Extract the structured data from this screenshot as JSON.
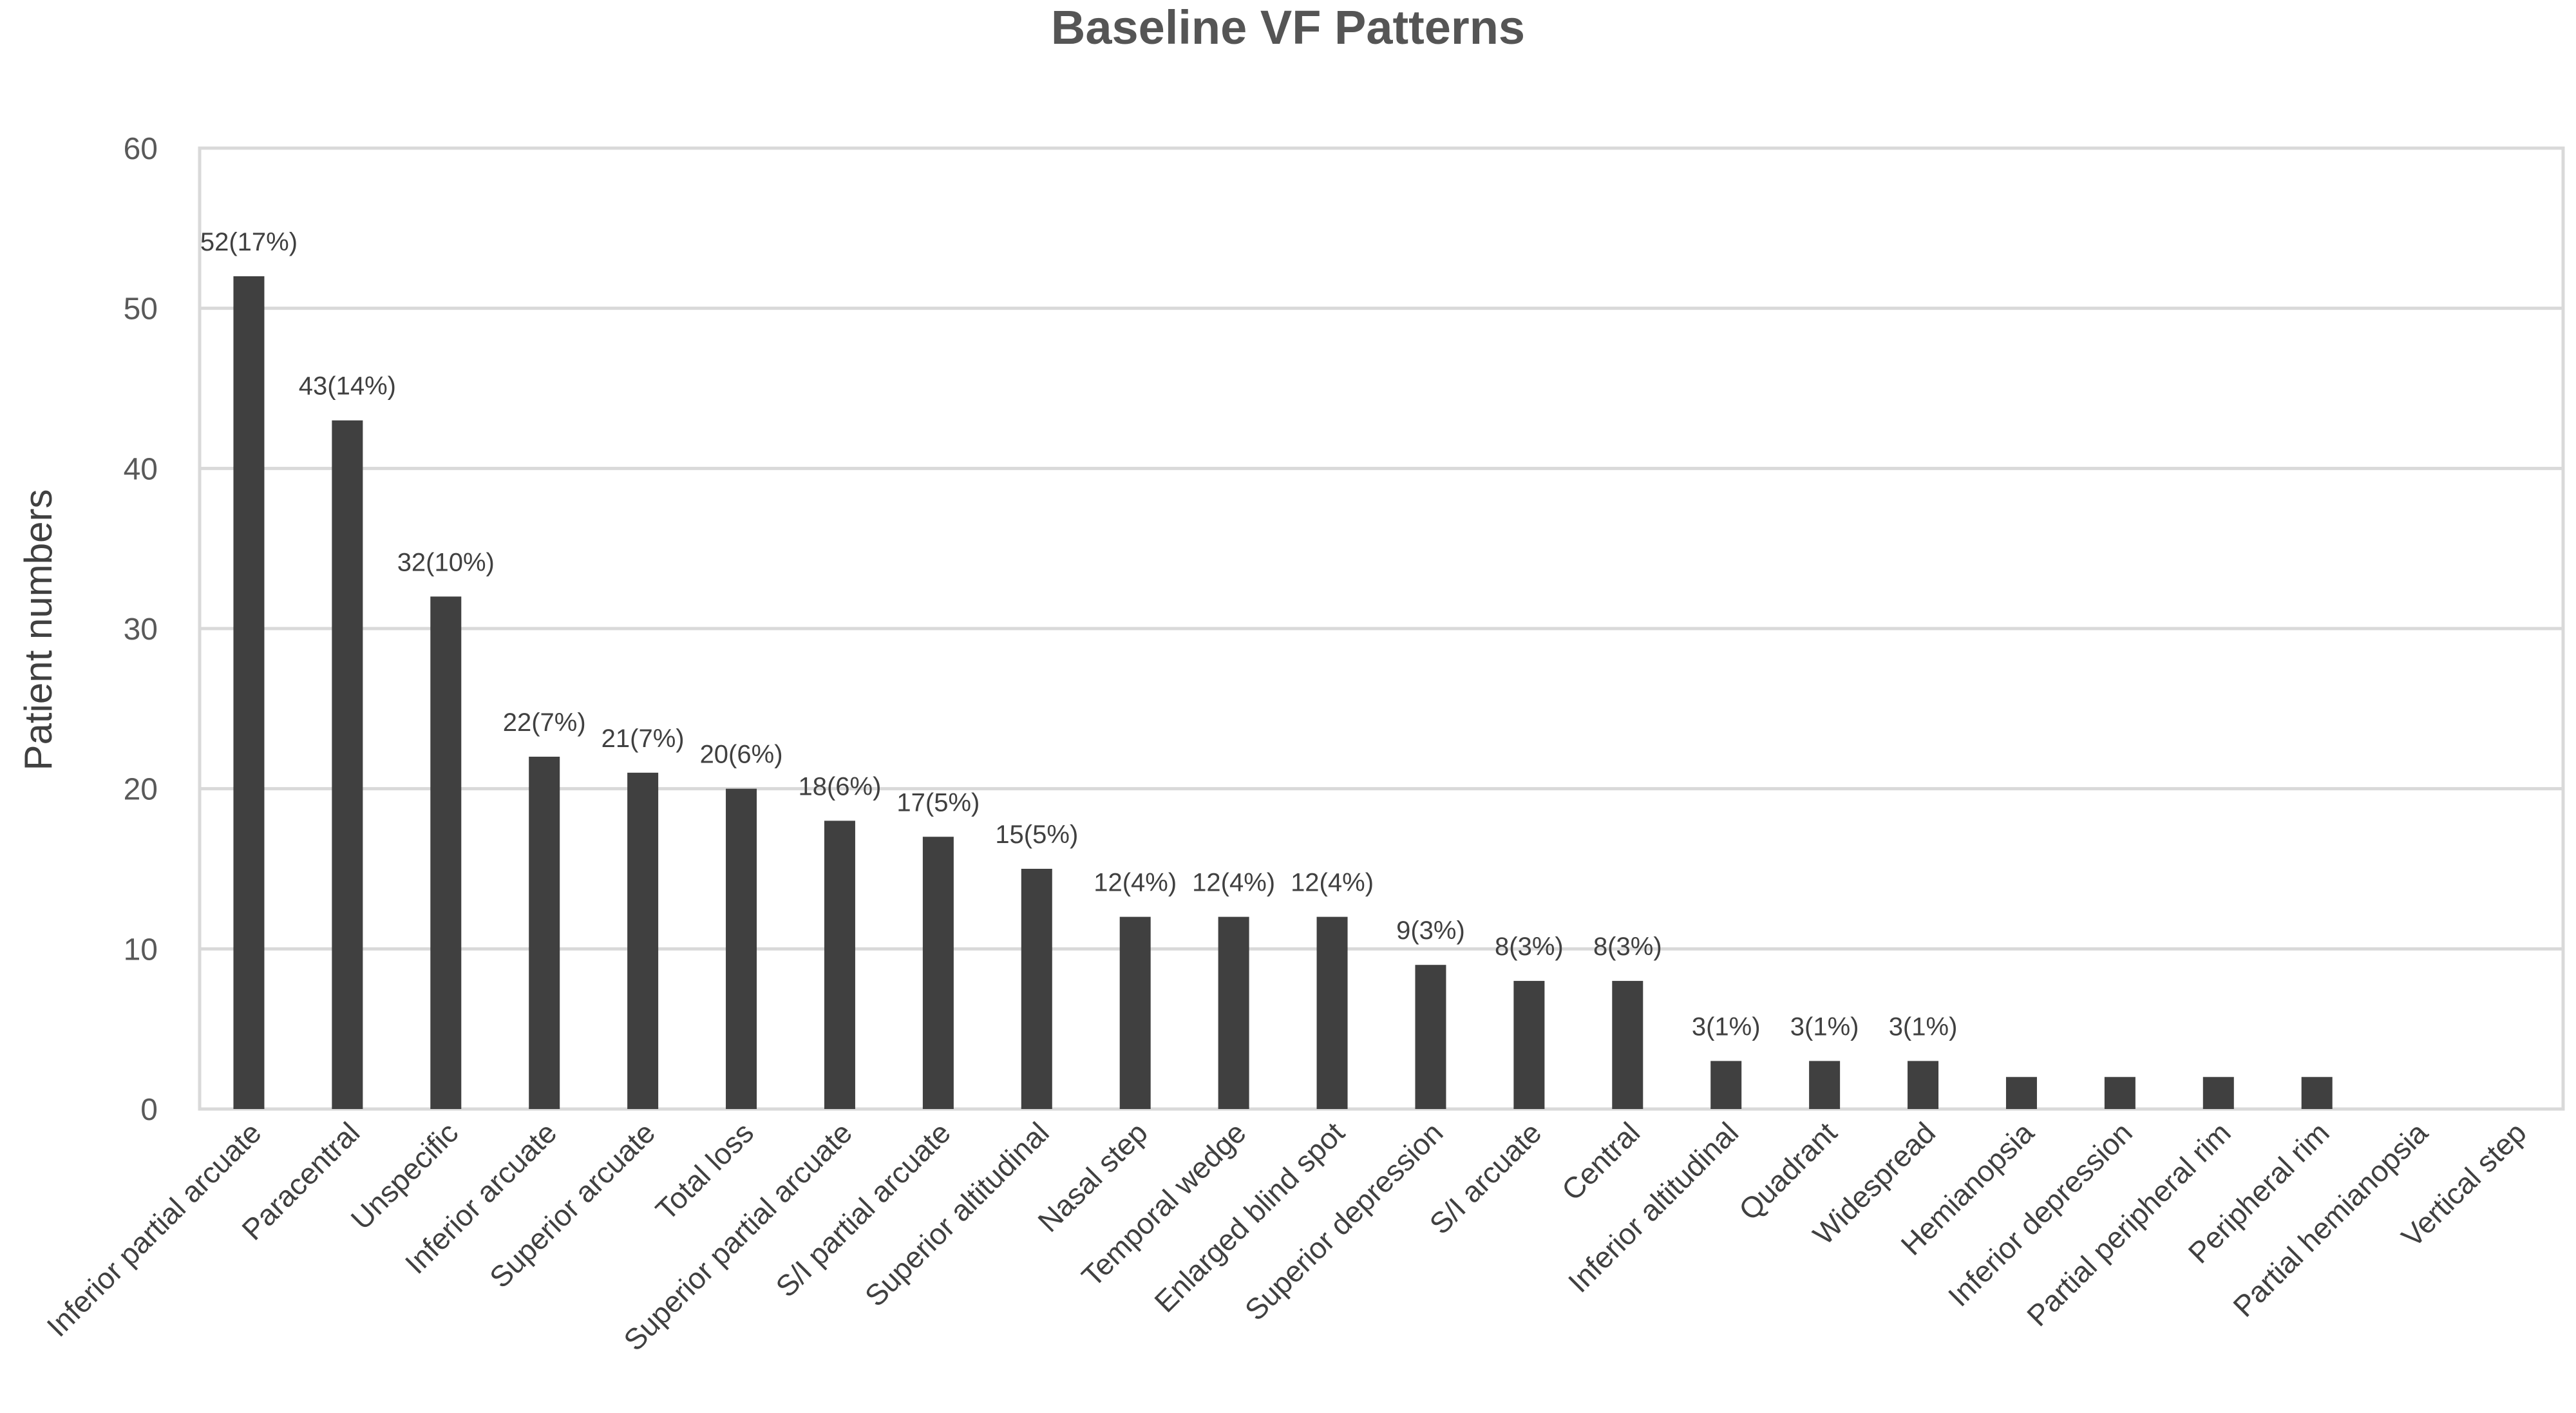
{
  "chart_data": {
    "type": "bar",
    "title": "Baseline VF Patterns",
    "xlabel": "",
    "ylabel": "Patient numbers",
    "ylim": [
      0,
      60
    ],
    "yticks": [
      0,
      10,
      20,
      30,
      40,
      50,
      60
    ],
    "grid": true,
    "bar_color": "#404040",
    "categories": [
      "Inferior partial arcuate",
      "Paracentral",
      "Unspecific",
      "Inferior arcuate",
      "Superior arcuate",
      "Total loss",
      "Superior partial arcuate",
      "S/I partial arcuate",
      "Superior altitudinal",
      "Nasal step",
      "Temporal wedge",
      "Enlarged blind spot",
      "Superior depression",
      "S/I arcuate",
      "Central",
      "Inferior altitudinal",
      "Quadrant",
      "Widespread",
      "Hemianopsia",
      "Inferior depression",
      "Partial peripheral rim",
      "Peripheral rim",
      "Partial hemianopsia",
      "Vertical step"
    ],
    "values": [
      52,
      43,
      32,
      22,
      21,
      20,
      18,
      17,
      15,
      12,
      12,
      12,
      9,
      8,
      8,
      3,
      3,
      3,
      2,
      2,
      2,
      2,
      0,
      0
    ],
    "data_labels": [
      "52(17%)",
      "43(14%)",
      "32(10%)",
      "22(7%)",
      "21(7%)",
      "20(6%)",
      "18(6%)",
      "17(5%)",
      "15(5%)",
      "12(4%)",
      "12(4%)",
      "12(4%)",
      "9(3%)",
      "8(3%)",
      "8(3%)",
      "3(1%)",
      "3(1%)",
      "3(1%)",
      "",
      "",
      "",
      "",
      "",
      ""
    ]
  }
}
